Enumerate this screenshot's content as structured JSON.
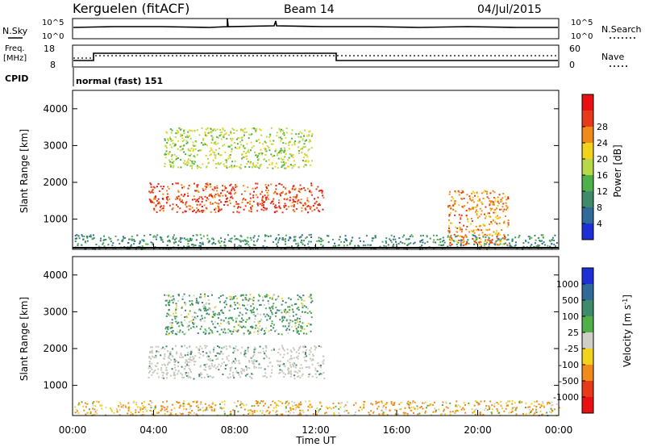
{
  "header": {
    "station": "Kerguelen (fitACF)",
    "beam": "Beam 14",
    "date": "04/Jul/2015"
  },
  "noise_panel": {
    "left_label": "N.Sky",
    "right_label": "N.Search",
    "left_ticks": [
      "10^5",
      "10^0"
    ],
    "right_ticks": [
      "10^5",
      "10^0"
    ]
  },
  "freq_panel": {
    "left_label_line1": "Freq.",
    "left_label_line2": "[MHz]",
    "right_label": "Nave",
    "left_ticks": [
      "18",
      "8"
    ],
    "right_ticks": [
      "60",
      "0"
    ]
  },
  "cpid": {
    "label": "CPID",
    "value": "normal (fast) 151"
  },
  "colors": {
    "power_scale": [
      "#1f2fd8",
      "#2f6a9a",
      "#3f8a6a",
      "#4fb04a",
      "#b7d84a",
      "#f2d21a",
      "#f08a1a",
      "#e63a1a",
      "#e81010"
    ],
    "velocity_scale": [
      "#1f2fd8",
      "#2f6a9a",
      "#3f8a6a",
      "#4fb04a",
      "#cfcfc8",
      "#f2d21a",
      "#f08a1a",
      "#e63a1a",
      "#e81010"
    ],
    "ground_scatter": "#c7c7bd"
  },
  "chart_data": [
    {
      "type": "heatmap",
      "panel": "power",
      "xlabel": "",
      "ylabel": "Slant Range [km]",
      "x_range": [
        "00:00",
        "00:00"
      ],
      "ylim": [
        180,
        4500
      ],
      "y_ticks": [
        1000,
        2000,
        3000,
        4000
      ],
      "x_tick_labels": [
        "00:00",
        "04:00",
        "08:00",
        "12:00",
        "16:00",
        "20:00",
        "00:00"
      ],
      "colorbar": {
        "label": "Power [dB]",
        "ticks": [
          "4",
          "8",
          "12",
          "16",
          "20",
          "24",
          "28"
        ]
      },
      "regions": [
        {
          "name": "main band",
          "t_start": 3.7,
          "t_end": 12.4,
          "range_min": 1200,
          "range_max": 2000,
          "typical_power_db": 28
        },
        {
          "name": "upper patches",
          "t_start": 4.5,
          "t_end": 11.8,
          "range_min": 2400,
          "range_max": 3500,
          "typical_power_db": 16
        },
        {
          "name": "near-range band",
          "t_start": 0.0,
          "t_end": 24.0,
          "range_min": 200,
          "range_max": 600,
          "typical_power_db": 8
        },
        {
          "name": "evening echoes",
          "t_start": 18.5,
          "t_end": 21.5,
          "range_min": 300,
          "range_max": 1800,
          "typical_power_db": 24
        }
      ]
    },
    {
      "type": "heatmap",
      "panel": "velocity",
      "xlabel": "Time UT",
      "ylabel": "Slant Range [km]",
      "x_range": [
        "00:00",
        "00:00"
      ],
      "ylim": [
        180,
        4500
      ],
      "y_ticks": [
        1000,
        2000,
        3000,
        4000
      ],
      "x_tick_labels": [
        "00:00",
        "04:00",
        "08:00",
        "12:00",
        "16:00",
        "20:00",
        "00:00"
      ],
      "colorbar": {
        "label": "Velocity [m s^-1]",
        "ticks": [
          "1000",
          "500",
          "100",
          "25",
          "-25",
          "-100",
          "-500",
          "-1000"
        ]
      },
      "regions": [
        {
          "name": "ground scatter band",
          "t_start": 3.7,
          "t_end": 12.4,
          "range_min": 1200,
          "range_max": 2100,
          "typical_velocity": 0
        },
        {
          "name": "upper patches",
          "t_start": 4.5,
          "t_end": 11.8,
          "range_min": 2400,
          "range_max": 3500,
          "typical_velocity": 100
        },
        {
          "name": "near-range band",
          "t_start": 0.0,
          "t_end": 24.0,
          "range_min": 200,
          "range_max": 600,
          "typical_velocity": -100
        }
      ]
    },
    {
      "type": "line",
      "panel": "noise",
      "series": [
        {
          "name": "N.Sky",
          "style": "solid",
          "approx_level": "10^4"
        },
        {
          "name": "N.Search",
          "style": "dotted",
          "approx_level": "10^4"
        }
      ]
    },
    {
      "type": "line",
      "panel": "frequency",
      "series": [
        {
          "name": "Freq.",
          "style": "solid",
          "x": [
            "00:00",
            "01:00",
            "01:00",
            "13:00",
            "13:00",
            "24:00"
          ],
          "y": [
            10.5,
            10.5,
            14.2,
            14.2,
            10.5,
            10.5
          ]
        },
        {
          "name": "Nave",
          "style": "dotted",
          "x": [
            "00:00",
            "01:00",
            "01:00",
            "24:00"
          ],
          "y": [
            30,
            30,
            40,
            40
          ]
        }
      ]
    }
  ]
}
